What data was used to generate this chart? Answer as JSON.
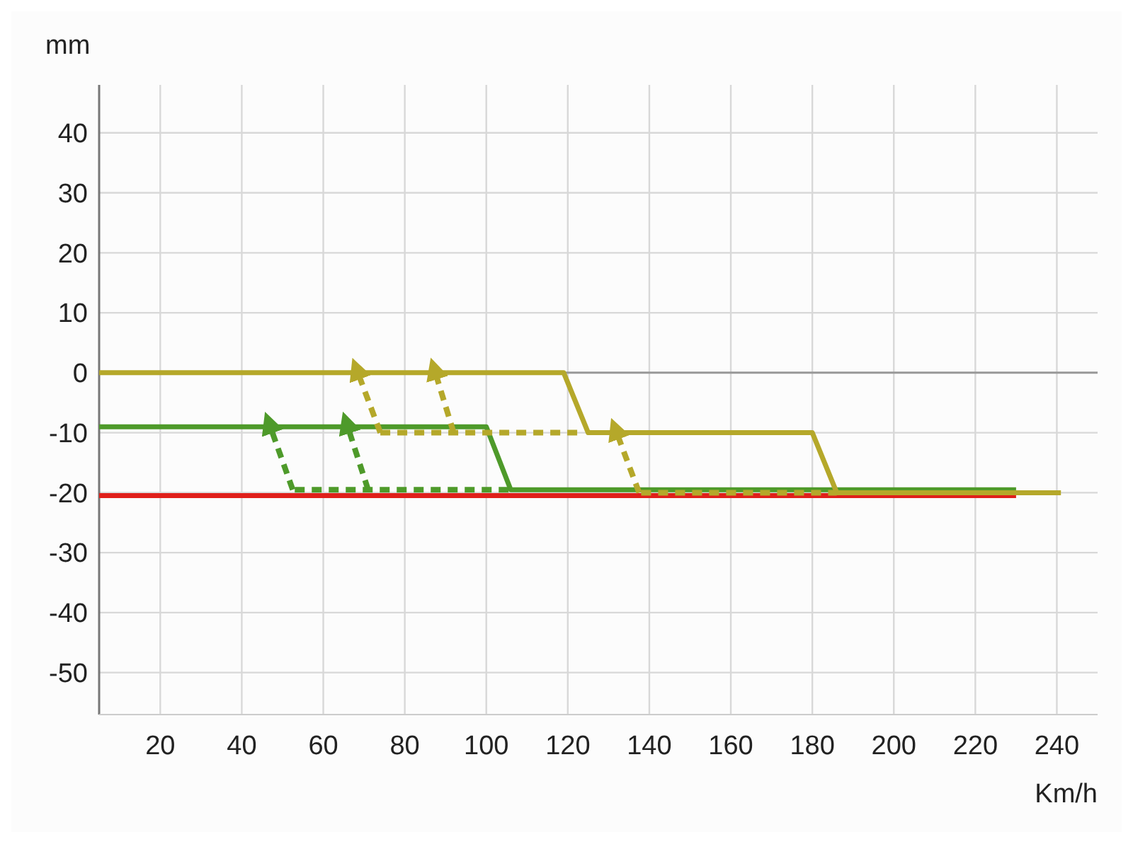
{
  "chart_data": {
    "type": "line",
    "xlabel": "Km/h",
    "ylabel": "mm",
    "xlim": [
      5,
      250
    ],
    "ylim": [
      -57,
      48
    ],
    "xticks": [
      20,
      40,
      60,
      80,
      100,
      120,
      140,
      160,
      180,
      200,
      220,
      240
    ],
    "yticks": [
      -50,
      -40,
      -30,
      -20,
      -10,
      0,
      10,
      20,
      30,
      40
    ],
    "grid": true,
    "line_style": "solid",
    "ref_lines": [
      {
        "axis": "y",
        "value": 0,
        "color": "#999999"
      }
    ],
    "series": [
      {
        "color": "#e0201b",
        "x": [
          5,
          230
        ],
        "values": [
          -20.5,
          -20.5
        ]
      },
      {
        "color": "#4e9a2a",
        "x": [
          5,
          100,
          106,
          230
        ],
        "values": [
          -9,
          -9,
          -19.5,
          -19.5
        ]
      },
      {
        "color": "#b5a82a",
        "x": [
          5,
          119,
          125,
          180,
          186,
          241
        ],
        "values": [
          0,
          0,
          -10,
          -10,
          -20,
          -20
        ]
      },
      {
        "color": "#b5a82a",
        "line_style": "dashed",
        "x": [
          74,
          124
        ],
        "values": [
          -10,
          -10
        ]
      },
      {
        "color": "#b5a82a",
        "line_style": "dashed",
        "x": [
          138,
          186
        ],
        "values": [
          -20,
          -20
        ]
      },
      {
        "color": "#4e9a2a",
        "line_style": "dashed",
        "x": [
          53,
          106
        ],
        "values": [
          -19.5,
          -19.5
        ]
      },
      {
        "color": "#b5a82a",
        "line_style": "dashed",
        "x": [
          74,
          68.5
        ],
        "values": [
          -10,
          0
        ]
      },
      {
        "color": "#b5a82a",
        "line_style": "dashed",
        "x": [
          92,
          87.5
        ],
        "values": [
          -10,
          0
        ]
      },
      {
        "color": "#b5a82a",
        "line_style": "dashed",
        "x": [
          137.5,
          132
        ],
        "values": [
          -20,
          -10
        ]
      },
      {
        "color": "#4e9a2a",
        "line_style": "dashed",
        "x": [
          52.5,
          47
        ],
        "values": [
          -19.5,
          -9
        ]
      },
      {
        "color": "#4e9a2a",
        "line_style": "dashed",
        "x": [
          71,
          66
        ],
        "values": [
          -19.5,
          -9
        ]
      }
    ]
  }
}
